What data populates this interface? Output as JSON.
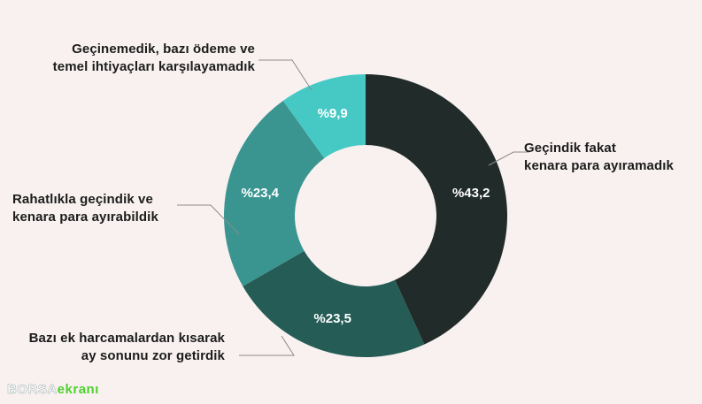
{
  "chart_data": {
    "type": "pie",
    "donut": true,
    "slices": [
      {
        "label_lines": [
          "Geçindik fakat",
          "kenara para ayıramadık"
        ],
        "value": 43.2,
        "value_label": "%43,2",
        "color": "#212b29"
      },
      {
        "label_lines": [
          "Bazı ek harcamalardan kısarak",
          "ay sonunu zor getirdik"
        ],
        "value": 23.5,
        "value_label": "%23,5",
        "color": "#265c56"
      },
      {
        "label_lines": [
          "Rahatlıkla geçindik ve",
          "kenara para ayırabildik"
        ],
        "value": 23.4,
        "value_label": "%23,4",
        "color": "#3a9591"
      },
      {
        "label_lines": [
          "Geçinemedik, bazı ödeme ve",
          "temel ihtiyaçları karşılayamadık"
        ],
        "value": 9.9,
        "value_label": "%9,9",
        "color": "#46c9c4"
      }
    ]
  },
  "watermark": {
    "part1": "BORSA",
    "part2": "ekranı"
  }
}
